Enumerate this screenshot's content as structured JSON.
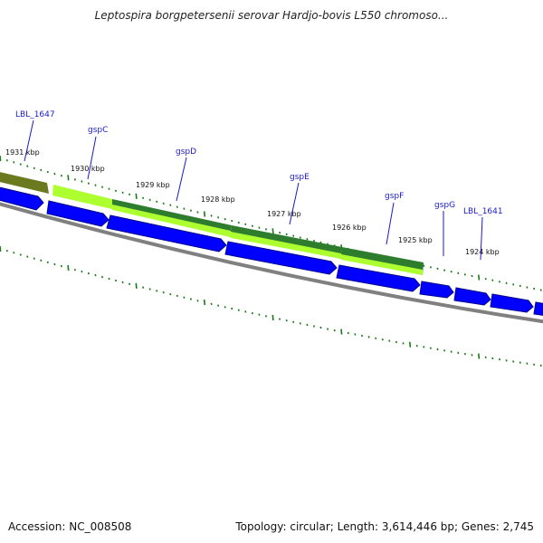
{
  "title": "Leptospira borgpetersenii serovar Hardjo-bovis L550 chromoso...",
  "footer": {
    "accession": "Accession: NC_008508",
    "summary": "Topology: circular; Length: 3,614,446 bp; Genes: 2,745"
  },
  "colors": {
    "gene_label": "#1a1acc",
    "leader_line": "#1a1acc",
    "tick": "#1a7a1a",
    "backbone": "#808080",
    "cds_arrow": "#0000ff",
    "cds_arrow_edge": "#00008c",
    "feature_olive": "#6b7a1f",
    "feature_lime": "#adff2f",
    "feature_dark_green": "#2e7d2e"
  },
  "kbp_ticks": [
    "1931 kbp",
    "1930 kbp",
    "1929 kbp",
    "1928 kbp",
    "1927 kbp",
    "1926 kbp",
    "1925 kbp",
    "1924 kbp"
  ],
  "gene_labels": [
    "LBL_1647",
    "gspC",
    "gspD",
    "gspE",
    "gspF",
    "gspG",
    "LBL_1641"
  ]
}
